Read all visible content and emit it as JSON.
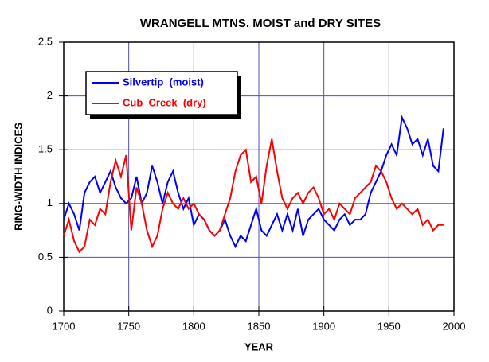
{
  "chart_data": {
    "type": "line",
    "title": "WRANGELL MTNS. MOIST and DRY SITES",
    "xlabel": "YEAR",
    "ylabel": "RING-WIDTH INDICES",
    "x": [
      1700,
      1704,
      1708,
      1712,
      1716,
      1720,
      1724,
      1728,
      1732,
      1736,
      1740,
      1744,
      1748,
      1752,
      1756,
      1760,
      1764,
      1768,
      1772,
      1776,
      1780,
      1784,
      1788,
      1792,
      1796,
      1800,
      1804,
      1808,
      1812,
      1816,
      1820,
      1824,
      1828,
      1832,
      1836,
      1840,
      1844,
      1848,
      1852,
      1856,
      1860,
      1864,
      1868,
      1872,
      1876,
      1880,
      1884,
      1888,
      1892,
      1896,
      1900,
      1904,
      1908,
      1912,
      1916,
      1920,
      1924,
      1928,
      1932,
      1936,
      1940,
      1944,
      1948,
      1952,
      1956,
      1960,
      1964,
      1968,
      1972,
      1976,
      1980,
      1984,
      1988,
      1992
    ],
    "series": [
      {
        "name": "Silvertip  (moist)",
        "color": "#0000ff",
        "values": [
          0.85,
          1.0,
          0.9,
          0.75,
          1.1,
          1.2,
          1.25,
          1.1,
          1.2,
          1.3,
          1.15,
          1.05,
          1.0,
          1.05,
          1.25,
          1.0,
          1.1,
          1.35,
          1.2,
          1.0,
          1.2,
          1.3,
          1.1,
          0.95,
          1.05,
          0.8,
          0.9,
          0.85,
          0.75,
          0.7,
          0.75,
          0.85,
          0.7,
          0.6,
          0.7,
          0.65,
          0.8,
          0.95,
          0.75,
          0.7,
          0.8,
          0.9,
          0.75,
          0.9,
          0.75,
          0.95,
          0.7,
          0.85,
          0.9,
          0.95,
          0.85,
          0.8,
          0.75,
          0.85,
          0.9,
          0.8,
          0.85,
          0.85,
          0.9,
          1.1,
          1.2,
          1.3,
          1.45,
          1.55,
          1.45,
          1.8,
          1.7,
          1.55,
          1.6,
          1.45,
          1.6,
          1.35,
          1.3,
          1.7
        ]
      },
      {
        "name": "Cub  Creek  (dry)",
        "color": "#ff0000",
        "values": [
          0.7,
          0.85,
          0.65,
          0.55,
          0.6,
          0.85,
          0.8,
          0.95,
          0.9,
          1.2,
          1.4,
          1.25,
          1.45,
          0.75,
          1.15,
          1.0,
          0.75,
          0.6,
          0.7,
          0.95,
          1.1,
          1.0,
          0.95,
          1.05,
          0.95,
          1.0,
          0.9,
          0.85,
          0.75,
          0.7,
          0.75,
          0.9,
          1.05,
          1.3,
          1.45,
          1.5,
          1.2,
          1.25,
          1.0,
          1.35,
          1.6,
          1.3,
          1.05,
          0.95,
          1.05,
          1.1,
          1.0,
          1.1,
          1.15,
          1.05,
          0.9,
          0.95,
          0.85,
          1.0,
          0.95,
          0.9,
          1.05,
          1.1,
          1.15,
          1.2,
          1.35,
          1.3,
          1.2,
          1.05,
          0.95,
          1.0,
          0.95,
          0.9,
          0.95,
          0.8,
          0.85,
          0.75,
          0.8,
          0.8
        ]
      }
    ],
    "xlim": [
      1700,
      2000
    ],
    "xticks": [
      1700,
      1750,
      1800,
      1850,
      1900,
      1950,
      2000
    ],
    "ylim": [
      0,
      2.5
    ],
    "yticks": [
      0,
      0.5,
      1,
      1.5,
      2,
      2.5
    ],
    "grid": true,
    "legend": "upper left"
  }
}
